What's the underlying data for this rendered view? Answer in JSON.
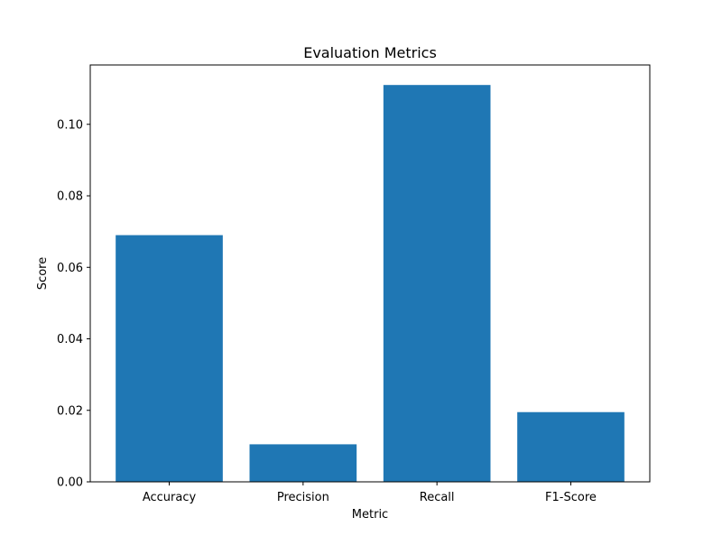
{
  "chart_data": {
    "type": "bar",
    "title": "Evaluation Metrics",
    "xlabel": "Metric",
    "ylabel": "Score",
    "categories": [
      "Accuracy",
      "Precision",
      "Recall",
      "F1-Score"
    ],
    "values": [
      0.069,
      0.0105,
      0.111,
      0.0195
    ],
    "ylim": [
      0,
      0.1166
    ],
    "yticks": [
      0.0,
      0.02,
      0.04,
      0.06,
      0.08,
      0.1
    ],
    "ytick_labels": [
      "0.00",
      "0.02",
      "0.04",
      "0.06",
      "0.08",
      "0.10"
    ],
    "grid": false,
    "bar_color": "#1f77b4"
  }
}
